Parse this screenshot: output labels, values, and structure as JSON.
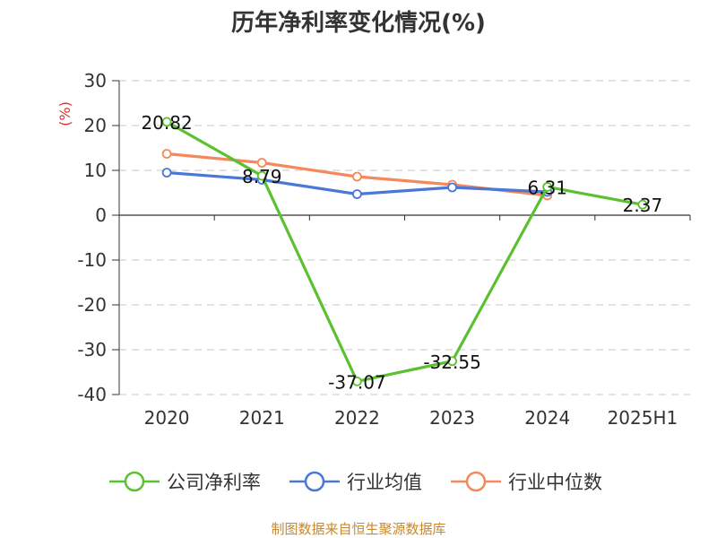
{
  "chart_data": {
    "type": "line",
    "title": "历年净利率变化情况(%)",
    "ylabel": "(%)",
    "xlabel": "",
    "categories": [
      "2020",
      "2021",
      "2022",
      "2023",
      "2024",
      "2025H1"
    ],
    "ylim": [
      -40,
      30
    ],
    "yticks": [
      30,
      20,
      10,
      0,
      -10,
      -20,
      -30,
      -40
    ],
    "grid": true,
    "legend_position": "bottom",
    "series": [
      {
        "name": "公司净利率",
        "color": "#5cc130",
        "values": [
          20.82,
          8.79,
          -37.07,
          -32.55,
          6.31,
          2.37
        ],
        "labels": [
          "20.82",
          "8.79",
          "-37.07",
          "-32.55",
          "6.31",
          "2.37"
        ]
      },
      {
        "name": "行业均值",
        "color": "#4a78d6",
        "values": [
          9.5,
          7.9,
          4.7,
          6.2,
          5.2,
          null
        ]
      },
      {
        "name": "行业中位数",
        "color": "#f5895b",
        "values": [
          13.7,
          11.7,
          8.6,
          6.8,
          4.4,
          null
        ]
      }
    ]
  },
  "source": "制图数据来自恒生聚源数据库"
}
